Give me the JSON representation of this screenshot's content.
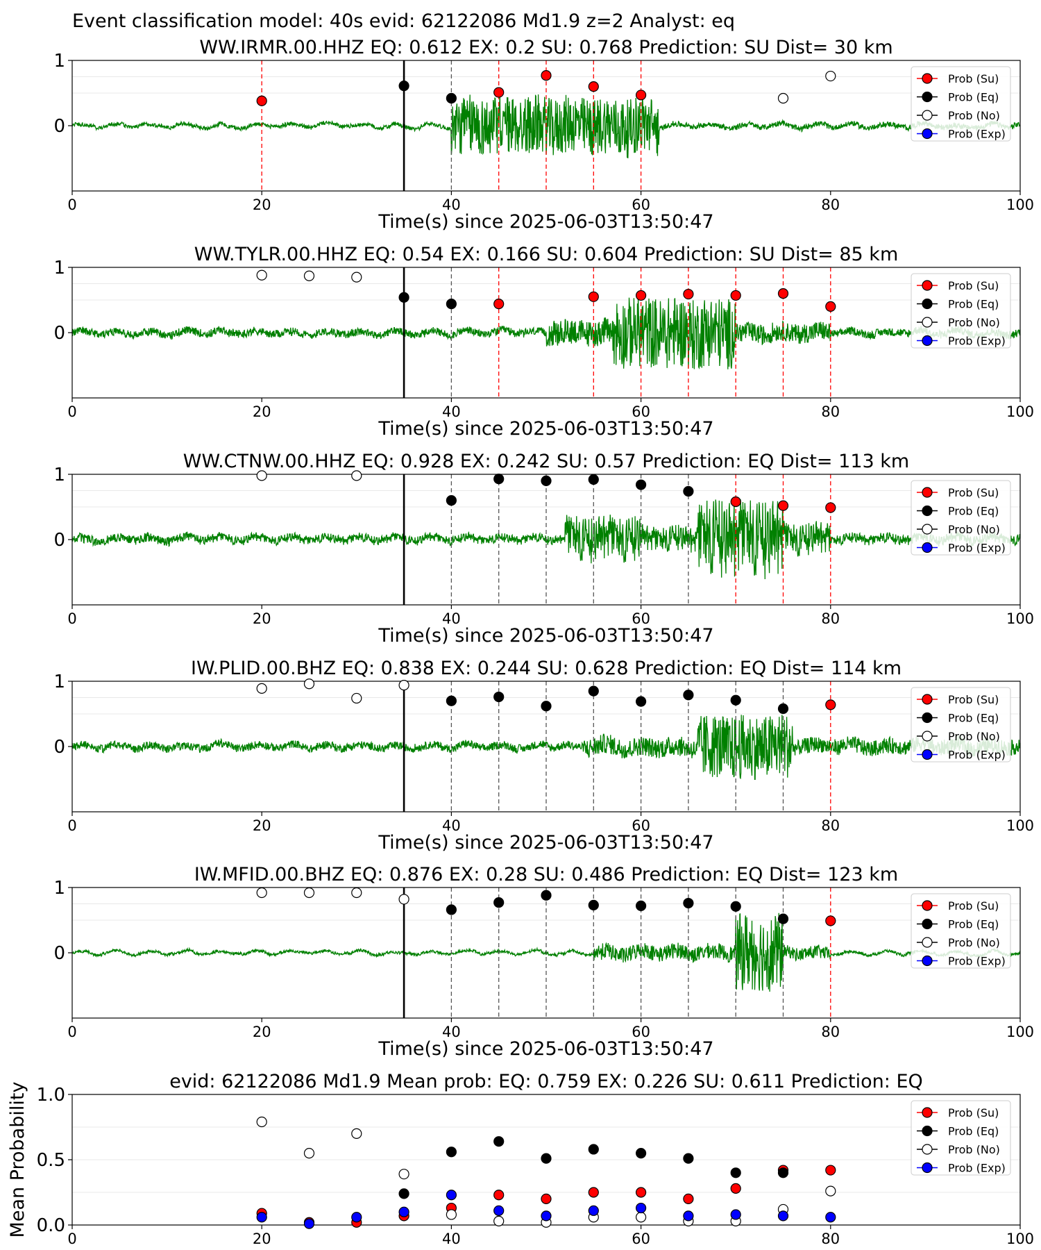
{
  "suptitle": "Event classification model: 40s evid: 62122086 Md1.9 z=2 Analyst: eq",
  "xlabel": "Time(s) since 2025-06-03T13:50:47",
  "colors": {
    "su": "#ff0000",
    "eq": "#000000",
    "no": "#ffffff",
    "exp": "#0000ff",
    "trace": "#008000",
    "red_line": "#ff0000",
    "black_line": "#000000"
  },
  "legend": [
    "Prob (Su)",
    "Prob (Eq)",
    "Prob (No)",
    "Prob (Exp)"
  ],
  "chart_data": [
    {
      "type": "scatter",
      "title": "WW.IRMR.00.HHZ   EQ: 0.612  EX: 0.2  SU: 0.768   Prediction: SU    Dist= 30 km",
      "xlim": [
        0,
        100
      ],
      "ylim": [
        -1,
        1
      ],
      "xticks": [
        0,
        20,
        40,
        60,
        80,
        100
      ],
      "yticks": [
        "1",
        "0"
      ],
      "trace_seed": 11,
      "trace_segments": [
        [
          0,
          40,
          0.03
        ],
        [
          40,
          62,
          0.45
        ],
        [
          62,
          100,
          0.04
        ]
      ],
      "pick_line": 35,
      "lines": [
        {
          "x": 20,
          "c": "su"
        },
        {
          "x": 40,
          "c": "eq"
        },
        {
          "x": 45,
          "c": "su"
        },
        {
          "x": 50,
          "c": "su"
        },
        {
          "x": 55,
          "c": "su"
        },
        {
          "x": 60,
          "c": "su"
        }
      ],
      "points": [
        {
          "x": 20,
          "y": 0.38,
          "c": "su"
        },
        {
          "x": 35,
          "y": 0.61,
          "c": "eq"
        },
        {
          "x": 40,
          "y": 0.42,
          "c": "eq"
        },
        {
          "x": 45,
          "y": 0.51,
          "c": "su"
        },
        {
          "x": 50,
          "y": 0.77,
          "c": "su"
        },
        {
          "x": 55,
          "y": 0.6,
          "c": "su"
        },
        {
          "x": 60,
          "y": 0.47,
          "c": "su"
        },
        {
          "x": 75,
          "y": 0.42,
          "c": "no"
        },
        {
          "x": 80,
          "y": 0.76,
          "c": "no"
        }
      ]
    },
    {
      "type": "scatter",
      "title": "WW.TYLR.00.HHZ   EQ: 0.54  EX: 0.166  SU: 0.604   Prediction: SU    Dist= 85 km",
      "xlim": [
        0,
        100
      ],
      "ylim": [
        -1,
        1
      ],
      "xticks": [
        0,
        20,
        40,
        60,
        80,
        100
      ],
      "yticks": [
        "1",
        "0"
      ],
      "trace_seed": 23,
      "trace_segments": [
        [
          0,
          50,
          0.06
        ],
        [
          50,
          57,
          0.2
        ],
        [
          57,
          70,
          0.55
        ],
        [
          70,
          80,
          0.15
        ],
        [
          80,
          100,
          0.06
        ]
      ],
      "pick_line": 35,
      "lines": [
        {
          "x": 40,
          "c": "eq"
        },
        {
          "x": 45,
          "c": "su"
        },
        {
          "x": 55,
          "c": "su"
        },
        {
          "x": 60,
          "c": "su"
        },
        {
          "x": 65,
          "c": "su"
        },
        {
          "x": 70,
          "c": "su"
        },
        {
          "x": 75,
          "c": "su"
        },
        {
          "x": 80,
          "c": "su"
        }
      ],
      "points": [
        {
          "x": 20,
          "y": 0.88,
          "c": "no"
        },
        {
          "x": 25,
          "y": 0.87,
          "c": "no"
        },
        {
          "x": 30,
          "y": 0.85,
          "c": "no"
        },
        {
          "x": 35,
          "y": 0.54,
          "c": "eq"
        },
        {
          "x": 40,
          "y": 0.44,
          "c": "eq"
        },
        {
          "x": 45,
          "y": 0.44,
          "c": "su"
        },
        {
          "x": 55,
          "y": 0.55,
          "c": "su"
        },
        {
          "x": 60,
          "y": 0.57,
          "c": "su"
        },
        {
          "x": 65,
          "y": 0.59,
          "c": "su"
        },
        {
          "x": 70,
          "y": 0.57,
          "c": "su"
        },
        {
          "x": 75,
          "y": 0.6,
          "c": "su"
        },
        {
          "x": 80,
          "y": 0.4,
          "c": "su"
        }
      ]
    },
    {
      "type": "scatter",
      "title": "WW.CTNW.00.HHZ   EQ: 0.928  EX: 0.242  SU: 0.57   Prediction: EQ    Dist= 113 km",
      "xlim": [
        0,
        100
      ],
      "ylim": [
        -1,
        1
      ],
      "xticks": [
        0,
        20,
        40,
        60,
        80,
        100
      ],
      "yticks": [
        "1",
        "0"
      ],
      "trace_seed": 37,
      "trace_segments": [
        [
          0,
          52,
          0.07
        ],
        [
          52,
          60,
          0.35
        ],
        [
          60,
          66,
          0.2
        ],
        [
          66,
          75,
          0.6
        ],
        [
          75,
          80,
          0.25
        ],
        [
          80,
          100,
          0.08
        ]
      ],
      "pick_line": 35,
      "lines": [
        {
          "x": 40,
          "c": "eq"
        },
        {
          "x": 45,
          "c": "eq"
        },
        {
          "x": 50,
          "c": "eq"
        },
        {
          "x": 55,
          "c": "eq"
        },
        {
          "x": 60,
          "c": "eq"
        },
        {
          "x": 65,
          "c": "eq"
        },
        {
          "x": 70,
          "c": "su"
        },
        {
          "x": 75,
          "c": "su"
        },
        {
          "x": 80,
          "c": "su"
        }
      ],
      "points": [
        {
          "x": 20,
          "y": 0.98,
          "c": "no"
        },
        {
          "x": 30,
          "y": 0.98,
          "c": "no"
        },
        {
          "x": 40,
          "y": 0.6,
          "c": "eq"
        },
        {
          "x": 45,
          "y": 0.93,
          "c": "eq"
        },
        {
          "x": 50,
          "y": 0.9,
          "c": "eq"
        },
        {
          "x": 55,
          "y": 0.92,
          "c": "eq"
        },
        {
          "x": 60,
          "y": 0.84,
          "c": "eq"
        },
        {
          "x": 65,
          "y": 0.74,
          "c": "eq"
        },
        {
          "x": 70,
          "y": 0.58,
          "c": "su"
        },
        {
          "x": 75,
          "y": 0.52,
          "c": "su"
        },
        {
          "x": 80,
          "y": 0.49,
          "c": "su"
        }
      ]
    },
    {
      "type": "scatter",
      "title": "IW.PLID.00.BHZ   EQ: 0.838  EX: 0.244  SU: 0.628   Prediction: EQ    Dist= 114 km",
      "xlim": [
        0,
        100
      ],
      "ylim": [
        -1,
        1
      ],
      "xticks": [
        0,
        20,
        40,
        60,
        80,
        100
      ],
      "yticks": [
        "1",
        "0"
      ],
      "trace_seed": 41,
      "trace_segments": [
        [
          0,
          54,
          0.06
        ],
        [
          54,
          66,
          0.15
        ],
        [
          66,
          76,
          0.5
        ],
        [
          76,
          100,
          0.12
        ]
      ],
      "pick_line": 35,
      "lines": [
        {
          "x": 40,
          "c": "eq"
        },
        {
          "x": 45,
          "c": "eq"
        },
        {
          "x": 50,
          "c": "eq"
        },
        {
          "x": 55,
          "c": "eq"
        },
        {
          "x": 60,
          "c": "eq"
        },
        {
          "x": 65,
          "c": "eq"
        },
        {
          "x": 70,
          "c": "eq"
        },
        {
          "x": 75,
          "c": "eq"
        },
        {
          "x": 80,
          "c": "su"
        }
      ],
      "points": [
        {
          "x": 20,
          "y": 0.89,
          "c": "no"
        },
        {
          "x": 25,
          "y": 0.96,
          "c": "no"
        },
        {
          "x": 30,
          "y": 0.74,
          "c": "no"
        },
        {
          "x": 35,
          "y": 0.94,
          "c": "no"
        },
        {
          "x": 40,
          "y": 0.7,
          "c": "eq"
        },
        {
          "x": 45,
          "y": 0.76,
          "c": "eq"
        },
        {
          "x": 50,
          "y": 0.62,
          "c": "eq"
        },
        {
          "x": 55,
          "y": 0.85,
          "c": "eq"
        },
        {
          "x": 60,
          "y": 0.69,
          "c": "eq"
        },
        {
          "x": 65,
          "y": 0.79,
          "c": "eq"
        },
        {
          "x": 70,
          "y": 0.71,
          "c": "eq"
        },
        {
          "x": 75,
          "y": 0.58,
          "c": "eq"
        },
        {
          "x": 80,
          "y": 0.64,
          "c": "su"
        }
      ]
    },
    {
      "type": "scatter",
      "title": "IW.MFID.00.BHZ   EQ: 0.876  EX: 0.28  SU: 0.486   Prediction: EQ    Dist= 123 km",
      "xlim": [
        0,
        100
      ],
      "ylim": [
        -1,
        1
      ],
      "xticks": [
        0,
        20,
        40,
        60,
        80,
        100
      ],
      "yticks": [
        "1",
        "0"
      ],
      "trace_seed": 53,
      "trace_segments": [
        [
          0,
          55,
          0.02
        ],
        [
          55,
          70,
          0.12
        ],
        [
          70,
          75,
          0.6
        ],
        [
          75,
          80,
          0.1
        ],
        [
          80,
          100,
          0.02
        ]
      ],
      "pick_line": 35,
      "lines": [
        {
          "x": 40,
          "c": "eq"
        },
        {
          "x": 45,
          "c": "eq"
        },
        {
          "x": 50,
          "c": "eq"
        },
        {
          "x": 55,
          "c": "eq"
        },
        {
          "x": 60,
          "c": "eq"
        },
        {
          "x": 65,
          "c": "eq"
        },
        {
          "x": 70,
          "c": "eq"
        },
        {
          "x": 75,
          "c": "eq"
        },
        {
          "x": 80,
          "c": "su"
        }
      ],
      "points": [
        {
          "x": 20,
          "y": 0.92,
          "c": "no"
        },
        {
          "x": 25,
          "y": 0.92,
          "c": "no"
        },
        {
          "x": 30,
          "y": 0.92,
          "c": "no"
        },
        {
          "x": 35,
          "y": 0.82,
          "c": "no"
        },
        {
          "x": 40,
          "y": 0.66,
          "c": "eq"
        },
        {
          "x": 45,
          "y": 0.77,
          "c": "eq"
        },
        {
          "x": 50,
          "y": 0.88,
          "c": "eq"
        },
        {
          "x": 55,
          "y": 0.73,
          "c": "eq"
        },
        {
          "x": 60,
          "y": 0.72,
          "c": "eq"
        },
        {
          "x": 65,
          "y": 0.76,
          "c": "eq"
        },
        {
          "x": 70,
          "y": 0.71,
          "c": "eq"
        },
        {
          "x": 75,
          "y": 0.52,
          "c": "eq"
        },
        {
          "x": 80,
          "y": 0.49,
          "c": "su"
        }
      ]
    },
    {
      "type": "scatter",
      "title": "evid: 62122086  Md1.9   Mean prob:   EQ: 0.759  EX: 0.226  SU: 0.611   Prediction: EQ",
      "ylabel": "Mean Probability",
      "xlim": [
        0,
        100
      ],
      "ylim": [
        0,
        1
      ],
      "xticks": [
        0,
        20,
        40,
        60,
        80,
        100
      ],
      "yticks": [
        "1.0",
        "0.5",
        "0.0"
      ],
      "series": [
        {
          "name": "Prob (Su)",
          "c": "su",
          "x": [
            20,
            25,
            30,
            35,
            40,
            45,
            50,
            55,
            60,
            65,
            70,
            75,
            80
          ],
          "y": [
            0.09,
            0.02,
            0.02,
            0.07,
            0.13,
            0.23,
            0.2,
            0.25,
            0.25,
            0.2,
            0.28,
            0.42,
            0.42
          ]
        },
        {
          "name": "Prob (Eq)",
          "c": "eq",
          "x": [
            35,
            40,
            45,
            50,
            55,
            60,
            65,
            70,
            75
          ],
          "y": [
            0.24,
            0.56,
            0.64,
            0.51,
            0.58,
            0.55,
            0.51,
            0.4,
            0.4
          ]
        },
        {
          "name": "Prob (No)",
          "c": "no",
          "x": [
            20,
            25,
            30,
            35,
            40,
            45,
            50,
            55,
            60,
            65,
            70,
            75,
            80
          ],
          "y": [
            0.79,
            0.55,
            0.7,
            0.39,
            0.08,
            0.03,
            0.02,
            0.06,
            0.06,
            0.03,
            0.03,
            0.12,
            0.26
          ]
        },
        {
          "name": "Prob (Exp)",
          "c": "exp",
          "x": [
            20,
            25,
            30,
            35,
            40,
            45,
            50,
            55,
            60,
            65,
            70,
            75,
            80
          ],
          "y": [
            0.06,
            0.01,
            0.06,
            0.1,
            0.23,
            0.11,
            0.07,
            0.11,
            0.13,
            0.07,
            0.08,
            0.07,
            0.06
          ]
        }
      ]
    }
  ]
}
